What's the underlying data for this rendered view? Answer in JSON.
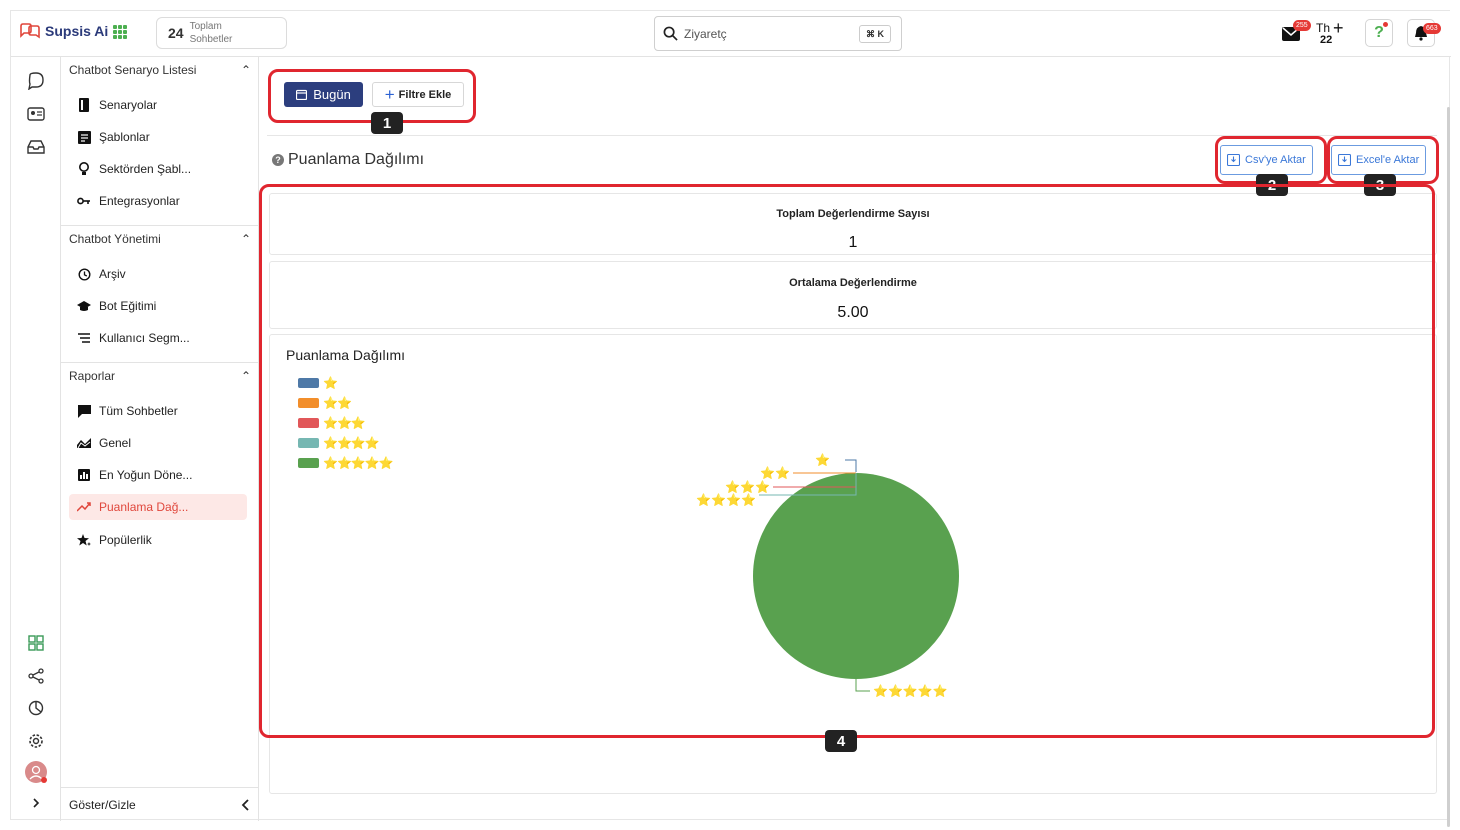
{
  "app": {
    "name": "Supsis Ai"
  },
  "header": {
    "total_count": "24",
    "total_label_line1": "Toplam",
    "total_label_line2": "Sohbetler",
    "search_value": "Ziyaretç",
    "search_shortcut": "⌘ K",
    "mail_badge": "255",
    "user_initials": "Th",
    "user_count": "22",
    "help_label": "?",
    "notif_badge": "663"
  },
  "sidebar": {
    "section1": {
      "title": "Chatbot Senaryo Listesi",
      "items": [
        {
          "label": "Senaryolar",
          "icon": "book-icon"
        },
        {
          "label": "Şablonlar",
          "icon": "template-icon"
        },
        {
          "label": "Sektörden Şabl...",
          "icon": "lightbulb-icon"
        },
        {
          "label": "Entegrasyonlar",
          "icon": "key-icon"
        }
      ]
    },
    "section2": {
      "title": "Chatbot Yönetimi",
      "items": [
        {
          "label": "Arşiv",
          "icon": "history-icon"
        },
        {
          "label": "Bot Eğitimi",
          "icon": "graduation-cap-icon"
        },
        {
          "label": "Kullanıcı Segm...",
          "icon": "list-icon"
        }
      ]
    },
    "section3": {
      "title": "Raporlar",
      "items": [
        {
          "label": "Tüm Sohbetler",
          "icon": "chat-icon"
        },
        {
          "label": "Genel",
          "icon": "area-chart-icon"
        },
        {
          "label": "En Yoğun Döne...",
          "icon": "bar-chart-icon"
        },
        {
          "label": "Puanlama Dağ...",
          "icon": "trend-line-icon"
        },
        {
          "label": "Popülerlik",
          "icon": "star-sparkle-icon"
        }
      ]
    },
    "footer_label": "Göster/Gizle"
  },
  "main": {
    "today_button": "Bugün",
    "filter_button": "Filtre Ekle",
    "page_title": "Puanlama Dağılımı",
    "csv_button": "Csv'ye Aktar",
    "excel_button": "Excel'e Aktar",
    "stats": [
      {
        "label": "Toplam Değerlendirme Sayısı",
        "value": "1"
      },
      {
        "label": "Ortalama Değerlendirme",
        "value": "5.00"
      }
    ]
  },
  "annotations": {
    "tag1": "1",
    "tag2": "2",
    "tag3": "3",
    "tag4": "4"
  },
  "colors": {
    "brand": "#2c3e7e",
    "accent_red": "#e0262f",
    "export_blue": "#3b78d8",
    "active_bg": "#fde8e6"
  },
  "chart_data": {
    "type": "pie",
    "title": "Puanlama Dağılımı",
    "legend_placement": "top-left",
    "categories": [
      "⭐",
      "⭐⭐",
      "⭐⭐⭐",
      "⭐⭐⭐⭐",
      "⭐⭐⭐⭐⭐"
    ],
    "values": [
      0,
      0,
      0,
      0,
      1
    ],
    "colors": [
      "#4e79a7",
      "#f28e2b",
      "#e15759",
      "#76b7b2",
      "#59a14f"
    ]
  }
}
